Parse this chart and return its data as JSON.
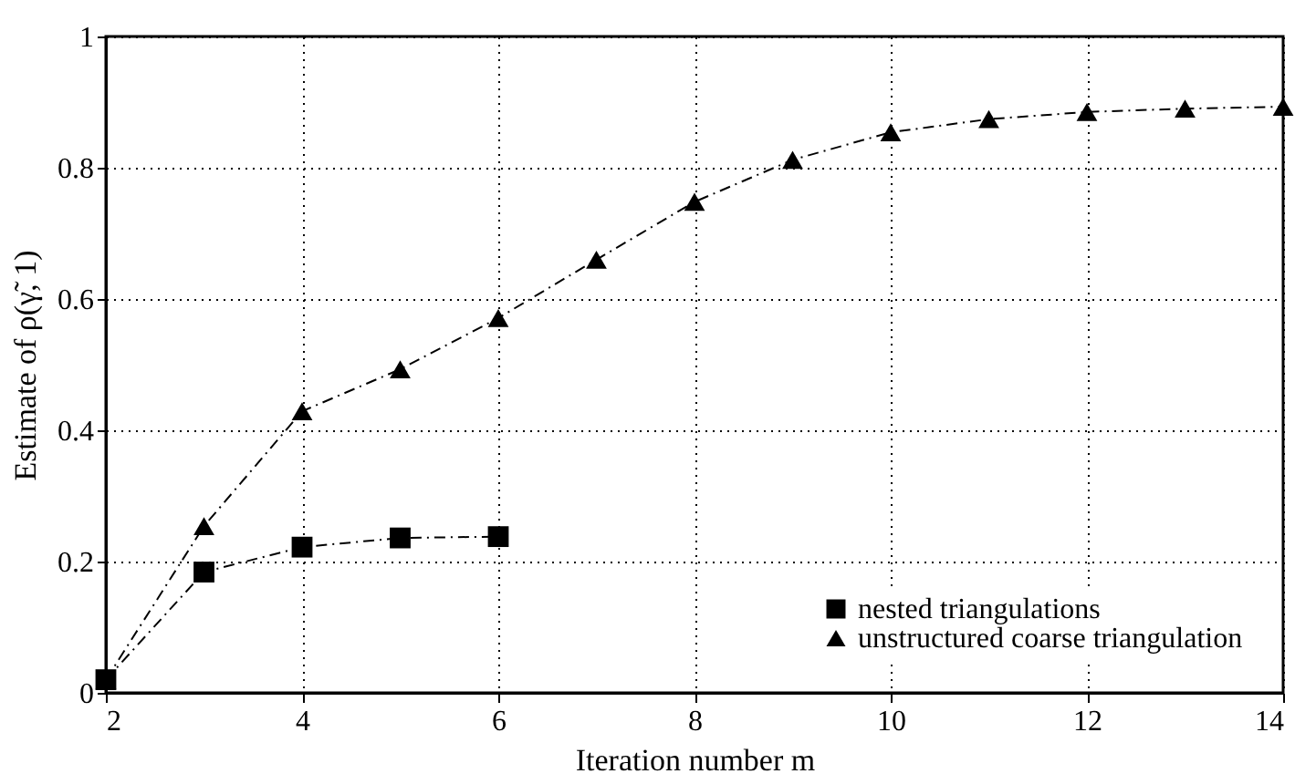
{
  "chart_data": {
    "type": "line",
    "xlabel": "Iteration number m",
    "ylabel": "Estimate of ρ(γ̃, 1)",
    "xlim": [
      2,
      14
    ],
    "xticks": [
      2,
      4,
      6,
      8,
      10,
      12,
      14
    ],
    "ylim": [
      0,
      1
    ],
    "yticks": [
      0,
      0.2,
      0.4,
      0.6,
      0.8,
      1
    ],
    "grid": true,
    "legend": "bottom right",
    "line_style": "dashed",
    "series": [
      {
        "name": "nested triangulations",
        "color": "#000000",
        "marker": "square",
        "x": [
          2,
          3,
          4,
          5,
          6
        ],
        "values": [
          0.02,
          0.184,
          0.222,
          0.236,
          0.238
        ]
      },
      {
        "name": "unstructured coarse triangulation",
        "color": "#000000",
        "marker": "triangle",
        "x": [
          2,
          3,
          4,
          5,
          6,
          7,
          8,
          9,
          10,
          11,
          12,
          13,
          14
        ],
        "values": [
          0.02,
          0.254,
          0.429,
          0.493,
          0.571,
          0.66,
          0.748,
          0.812,
          0.854,
          0.874,
          0.885,
          0.89,
          0.893
        ]
      }
    ]
  }
}
